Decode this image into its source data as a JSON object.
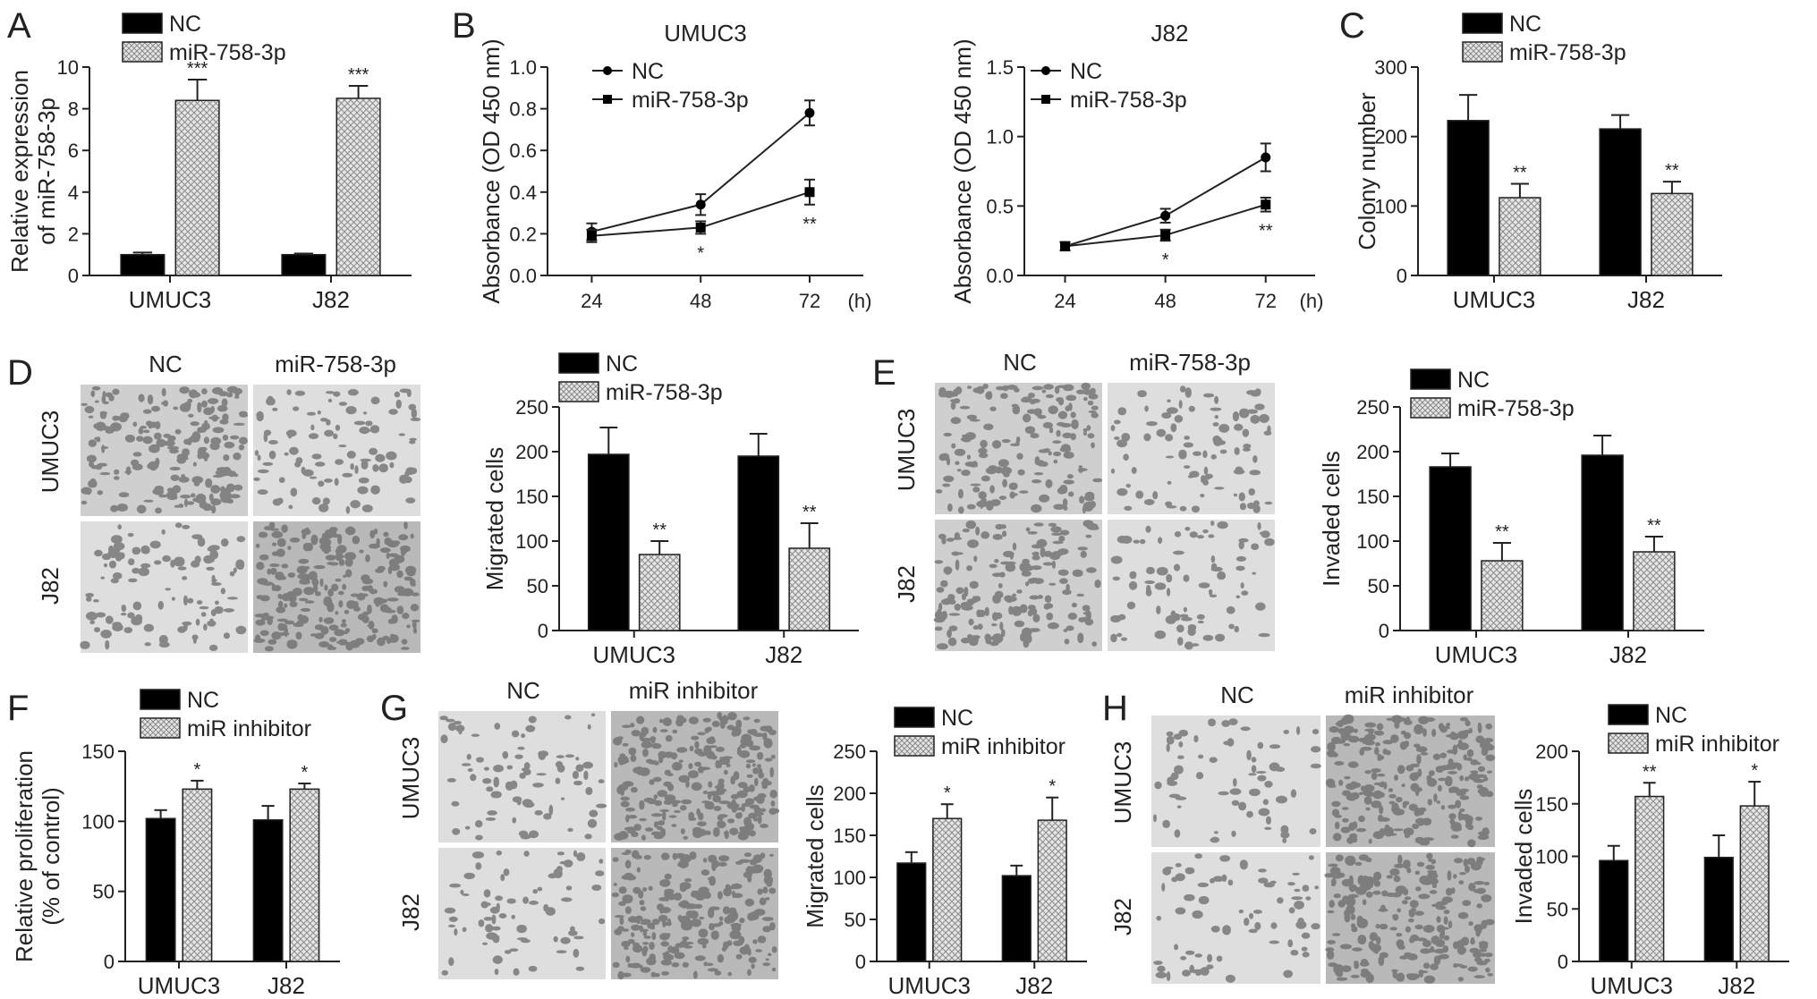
{
  "colors": {
    "nc": "#000000",
    "hatch_fill": "#e4e4e4",
    "hatch_line": "#8a8a8a",
    "axis": "#222222"
  },
  "panels": {
    "A": {
      "letter": "A"
    },
    "B": {
      "letter": "B"
    },
    "C": {
      "letter": "C"
    },
    "D": {
      "letter": "D"
    },
    "E": {
      "letter": "E"
    },
    "F": {
      "letter": "F"
    },
    "G": {
      "letter": "G"
    },
    "H": {
      "letter": "H"
    }
  },
  "micrographs": {
    "D": {
      "col_labels": [
        "NC",
        "miR-758-3p"
      ],
      "row_labels": [
        "UMUC3",
        "J82"
      ],
      "density": [
        [
          0.55,
          0.28
        ],
        [
          0.3,
          0.65
        ]
      ]
    },
    "E": {
      "col_labels": [
        "NC",
        "miR-758-3p"
      ],
      "row_labels": [
        "UMUC3",
        "J82"
      ],
      "density": [
        [
          0.5,
          0.25
        ],
        [
          0.48,
          0.22
        ]
      ]
    },
    "G": {
      "col_labels": [
        "NC",
        "miR inhibitor"
      ],
      "row_labels": [
        "UMUC3",
        "J82"
      ],
      "density": [
        [
          0.22,
          0.7
        ],
        [
          0.2,
          0.65
        ]
      ]
    },
    "H": {
      "col_labels": [
        "NC",
        "miR inhibitor"
      ],
      "row_labels": [
        "UMUC3",
        "J82"
      ],
      "density": [
        [
          0.18,
          0.68
        ],
        [
          0.2,
          0.62
        ]
      ]
    }
  },
  "chart_data": [
    {
      "panel": "A",
      "type": "bar",
      "title": "",
      "xlabel": "",
      "ylabel": "Relative expression of miR-758-3p",
      "categories": [
        "UMUC3",
        "J82"
      ],
      "ylim": [
        0,
        10
      ],
      "yticks": [
        0,
        2,
        4,
        6,
        8,
        10
      ],
      "series": [
        {
          "name": "NC",
          "values": [
            1.0,
            1.0
          ],
          "errors": [
            0.1,
            0.05
          ]
        },
        {
          "name": "miR-758-3p",
          "values": [
            8.4,
            8.5
          ],
          "errors": [
            1.0,
            0.6
          ]
        }
      ],
      "annotations": [
        "",
        "",
        "***",
        "***"
      ]
    },
    {
      "panel": "B",
      "type": "line",
      "title": "UMUC3",
      "xlabel": "(h)",
      "ylabel": "Absorbance (OD 450 nm)",
      "x": [
        24,
        48,
        72
      ],
      "ylim": [
        0,
        1.0
      ],
      "yticks": [
        0.0,
        0.2,
        0.4,
        0.6,
        0.8,
        1.0
      ],
      "series": [
        {
          "name": "NC",
          "values": [
            0.21,
            0.34,
            0.78
          ],
          "errors": [
            0.04,
            0.05,
            0.06
          ]
        },
        {
          "name": "miR-758-3p",
          "values": [
            0.19,
            0.23,
            0.4
          ],
          "errors": [
            0.03,
            0.03,
            0.06
          ]
        }
      ],
      "annotations": [
        "",
        "*",
        "**"
      ]
    },
    {
      "panel": "B2",
      "type": "line",
      "title": "J82",
      "xlabel": "(h)",
      "ylabel": "Absorbance (OD 450 nm)",
      "x": [
        24,
        48,
        72
      ],
      "ylim": [
        0,
        1.5
      ],
      "yticks": [
        0.0,
        0.5,
        1.0,
        1.5
      ],
      "series": [
        {
          "name": "NC",
          "values": [
            0.21,
            0.43,
            0.85
          ],
          "errors": [
            0.03,
            0.05,
            0.1
          ]
        },
        {
          "name": "miR-758-3p",
          "values": [
            0.21,
            0.29,
            0.51
          ],
          "errors": [
            0.03,
            0.04,
            0.05
          ]
        }
      ],
      "annotations": [
        "",
        "*",
        "**"
      ]
    },
    {
      "panel": "C",
      "type": "bar",
      "title": "",
      "xlabel": "",
      "ylabel": "Colony number",
      "categories": [
        "UMUC3",
        "J82"
      ],
      "ylim": [
        0,
        300
      ],
      "yticks": [
        0,
        100,
        200,
        300
      ],
      "series": [
        {
          "name": "NC",
          "values": [
            223,
            211
          ],
          "errors": [
            37,
            20
          ]
        },
        {
          "name": "miR-758-3p",
          "values": [
            112,
            118
          ],
          "errors": [
            20,
            17
          ]
        }
      ],
      "annotations": [
        "",
        "",
        "**",
        "**"
      ]
    },
    {
      "panel": "D",
      "type": "bar",
      "title": "",
      "xlabel": "",
      "ylabel": "Migrated cells",
      "categories": [
        "UMUC3",
        "J82"
      ],
      "ylim": [
        0,
        250
      ],
      "yticks": [
        0,
        50,
        100,
        150,
        200,
        250
      ],
      "series": [
        {
          "name": "NC",
          "values": [
            197,
            195
          ],
          "errors": [
            30,
            25
          ]
        },
        {
          "name": "miR-758-3p",
          "values": [
            85,
            92
          ],
          "errors": [
            15,
            28
          ]
        }
      ],
      "annotations": [
        "",
        "",
        "**",
        "**"
      ]
    },
    {
      "panel": "E",
      "type": "bar",
      "title": "",
      "xlabel": "",
      "ylabel": "Invaded cells",
      "categories": [
        "UMUC3",
        "J82"
      ],
      "ylim": [
        0,
        250
      ],
      "yticks": [
        0,
        50,
        100,
        150,
        200,
        250
      ],
      "series": [
        {
          "name": "NC",
          "values": [
            183,
            196
          ],
          "errors": [
            15,
            22
          ]
        },
        {
          "name": "miR-758-3p",
          "values": [
            78,
            88
          ],
          "errors": [
            20,
            17
          ]
        }
      ],
      "annotations": [
        "",
        "",
        "**",
        "**"
      ]
    },
    {
      "panel": "F",
      "type": "bar",
      "title": "",
      "xlabel": "",
      "ylabel": "Relative proliferation (% of control)",
      "categories": [
        "UMUC3",
        "J82"
      ],
      "ylim": [
        0,
        150
      ],
      "yticks": [
        0,
        50,
        100,
        150
      ],
      "series": [
        {
          "name": "NC",
          "values": [
            102,
            101
          ],
          "errors": [
            6,
            10
          ]
        },
        {
          "name": "miR inhibitor",
          "values": [
            123,
            123
          ],
          "errors": [
            6,
            4
          ]
        }
      ],
      "annotations": [
        "",
        "",
        "*",
        "*"
      ]
    },
    {
      "panel": "G",
      "type": "bar",
      "title": "",
      "xlabel": "",
      "ylabel": "Migrated cells",
      "categories": [
        "UMUC3",
        "J82"
      ],
      "ylim": [
        0,
        250
      ],
      "yticks": [
        0,
        50,
        100,
        150,
        200,
        250
      ],
      "series": [
        {
          "name": "NC",
          "values": [
            117,
            102
          ],
          "errors": [
            13,
            12
          ]
        },
        {
          "name": "miR inhibitor",
          "values": [
            170,
            168
          ],
          "errors": [
            17,
            27
          ]
        }
      ],
      "annotations": [
        "",
        "",
        "*",
        "*"
      ]
    },
    {
      "panel": "H",
      "type": "bar",
      "title": "",
      "xlabel": "",
      "ylabel": "Invaded cells",
      "categories": [
        "UMUC3",
        "J82"
      ],
      "ylim": [
        0,
        200
      ],
      "yticks": [
        0,
        50,
        100,
        150,
        200
      ],
      "series": [
        {
          "name": "NC",
          "values": [
            96,
            99
          ],
          "errors": [
            14,
            21
          ]
        },
        {
          "name": "miR inhibitor",
          "values": [
            157,
            148
          ],
          "errors": [
            13,
            23
          ]
        }
      ],
      "annotations": [
        "",
        "",
        "**",
        "*"
      ]
    }
  ]
}
